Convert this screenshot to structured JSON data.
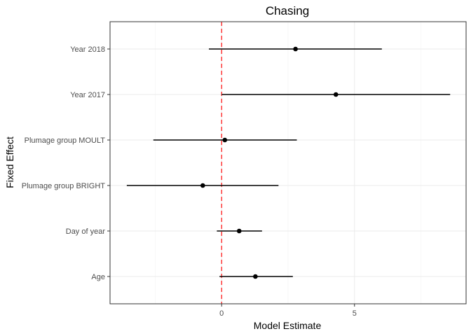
{
  "chart_data": {
    "type": "forest",
    "title": "Chasing",
    "xlabel": "Model Estimate",
    "ylabel": "Fixed Effect",
    "xlim": [
      -4.2,
      9.2
    ],
    "x_ticks": [
      0,
      5
    ],
    "x_minor_ticks": [
      -2.5,
      2.5,
      7.5
    ],
    "reference_line": {
      "x": 0,
      "color": "#ff2b2b",
      "style": "dashed"
    },
    "grid": true,
    "categories": [
      "Age",
      "Day of year",
      "Plumage group BRIGHT",
      "Plumage group MOULT",
      "Year 2017",
      "Year 2018"
    ],
    "estimates": [
      1.27,
      0.66,
      -0.71,
      0.12,
      4.3,
      2.78
    ],
    "lower": [
      -0.08,
      -0.18,
      -3.57,
      -2.57,
      0.0,
      -0.48
    ],
    "upper": [
      2.68,
      1.52,
      2.14,
      2.83,
      8.6,
      6.03
    ]
  }
}
